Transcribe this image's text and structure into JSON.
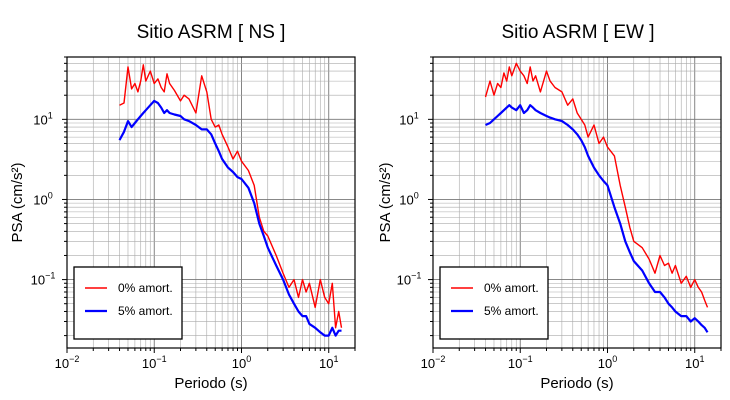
{
  "chart_data": [
    {
      "type": "line",
      "title": "Sitio ASRM [ NS ]",
      "xlabel": "Periodo (s)",
      "ylabel": "PSA (cm/s²)",
      "xscale": "log",
      "yscale": "log",
      "xlim": [
        0.01,
        20
      ],
      "ylim": [
        0.014,
        60
      ],
      "grid": true,
      "legend_placement": "bottom-left",
      "x_ticks": [
        {
          "base": "10",
          "exp": "−2"
        },
        {
          "base": "10",
          "exp": "−1"
        },
        {
          "base": "10",
          "exp": "0"
        },
        {
          "base": "10",
          "exp": "1"
        }
      ],
      "y_ticks": [
        {
          "base": "10",
          "exp": "−1"
        },
        {
          "base": "10",
          "exp": "0"
        },
        {
          "base": "10",
          "exp": "1"
        }
      ],
      "x": [
        0.04,
        0.045,
        0.05,
        0.055,
        0.06,
        0.065,
        0.07,
        0.075,
        0.08,
        0.09,
        0.1,
        0.11,
        0.12,
        0.13,
        0.14,
        0.15,
        0.17,
        0.2,
        0.22,
        0.25,
        0.3,
        0.35,
        0.4,
        0.45,
        0.5,
        0.55,
        0.6,
        0.7,
        0.8,
        0.9,
        1.0,
        1.2,
        1.4,
        1.6,
        1.8,
        2.0,
        2.5,
        3.0,
        3.5,
        4.0,
        4.5,
        5.0,
        5.5,
        6.0,
        7.0,
        8.0,
        9.0,
        10.0,
        11.0,
        12.0,
        13.0,
        14.0
      ],
      "series": [
        {
          "name": "0% amort.",
          "color": "#ff0000",
          "values": [
            15,
            16,
            45,
            24,
            28,
            22,
            30,
            48,
            30,
            40,
            28,
            32,
            25,
            22,
            37,
            28,
            23,
            17,
            20,
            18,
            12,
            35,
            22,
            10,
            8.0,
            8.5,
            6.5,
            4.5,
            3.2,
            4.0,
            3.0,
            2.3,
            1.5,
            0.6,
            0.4,
            0.35,
            0.2,
            0.12,
            0.08,
            0.1,
            0.06,
            0.1,
            0.07,
            0.09,
            0.045,
            0.1,
            0.06,
            0.05,
            0.09,
            0.025,
            0.04,
            0.025
          ]
        },
        {
          "name": "5% amort.",
          "color": "#0000ff",
          "values": [
            5.5,
            7,
            9.5,
            8,
            9,
            10,
            11,
            12,
            13,
            15,
            17,
            16,
            14,
            12,
            13,
            12,
            11.5,
            11,
            10,
            9.5,
            8.5,
            7.5,
            7.5,
            6.5,
            5.0,
            4.0,
            3.2,
            2.5,
            2.2,
            1.9,
            1.8,
            1.4,
            0.9,
            0.5,
            0.35,
            0.25,
            0.15,
            0.1,
            0.065,
            0.05,
            0.04,
            0.035,
            0.035,
            0.028,
            0.025,
            0.022,
            0.02,
            0.02,
            0.025,
            0.02,
            0.023,
            0.023
          ]
        }
      ]
    },
    {
      "type": "line",
      "title": "Sitio ASRM [ EW ]",
      "xlabel": "Periodo (s)",
      "ylabel": "PSA (cm/s²)",
      "xscale": "log",
      "yscale": "log",
      "xlim": [
        0.01,
        20
      ],
      "ylim": [
        0.014,
        60
      ],
      "grid": true,
      "legend_placement": "bottom-left",
      "x_ticks": [
        {
          "base": "10",
          "exp": "−2"
        },
        {
          "base": "10",
          "exp": "−1"
        },
        {
          "base": "10",
          "exp": "0"
        },
        {
          "base": "10",
          "exp": "1"
        }
      ],
      "y_ticks": [
        {
          "base": "10",
          "exp": "−1"
        },
        {
          "base": "10",
          "exp": "0"
        },
        {
          "base": "10",
          "exp": "1"
        }
      ],
      "x": [
        0.04,
        0.045,
        0.05,
        0.055,
        0.06,
        0.065,
        0.07,
        0.075,
        0.08,
        0.09,
        0.1,
        0.11,
        0.12,
        0.13,
        0.14,
        0.15,
        0.17,
        0.2,
        0.22,
        0.25,
        0.3,
        0.35,
        0.4,
        0.45,
        0.5,
        0.55,
        0.6,
        0.7,
        0.8,
        0.9,
        1.0,
        1.2,
        1.4,
        1.6,
        1.8,
        2.0,
        2.5,
        3.0,
        3.5,
        4.0,
        4.5,
        5.0,
        5.5,
        6.0,
        7.0,
        8.0,
        9.0,
        10.0,
        11.0,
        12.0,
        13.0,
        14.0
      ],
      "series": [
        {
          "name": "0% amort.",
          "color": "#ff0000",
          "values": [
            19,
            30,
            20,
            28,
            25,
            38,
            30,
            45,
            35,
            50,
            40,
            35,
            28,
            45,
            30,
            35,
            22,
            40,
            30,
            25,
            22,
            15,
            18,
            12,
            10,
            8.5,
            6.0,
            8.5,
            5.0,
            6.0,
            4.5,
            3.5,
            1.5,
            0.8,
            0.45,
            0.3,
            0.25,
            0.18,
            0.12,
            0.2,
            0.15,
            0.16,
            0.12,
            0.15,
            0.09,
            0.11,
            0.08,
            0.1,
            0.08,
            0.07,
            0.055,
            0.045
          ]
        },
        {
          "name": "5% amort.",
          "color": "#0000ff",
          "values": [
            8.5,
            9,
            10,
            11,
            12,
            13,
            14,
            15,
            14,
            13,
            15,
            12,
            13,
            15,
            14,
            13,
            12,
            11,
            10.5,
            10,
            9.5,
            8.5,
            7.5,
            6.5,
            5.5,
            4.5,
            3.5,
            2.5,
            2.0,
            1.7,
            1.5,
            0.8,
            0.5,
            0.3,
            0.22,
            0.17,
            0.13,
            0.09,
            0.07,
            0.07,
            0.06,
            0.05,
            0.045,
            0.04,
            0.035,
            0.035,
            0.03,
            0.033,
            0.03,
            0.027,
            0.025,
            0.022
          ]
        }
      ]
    }
  ]
}
